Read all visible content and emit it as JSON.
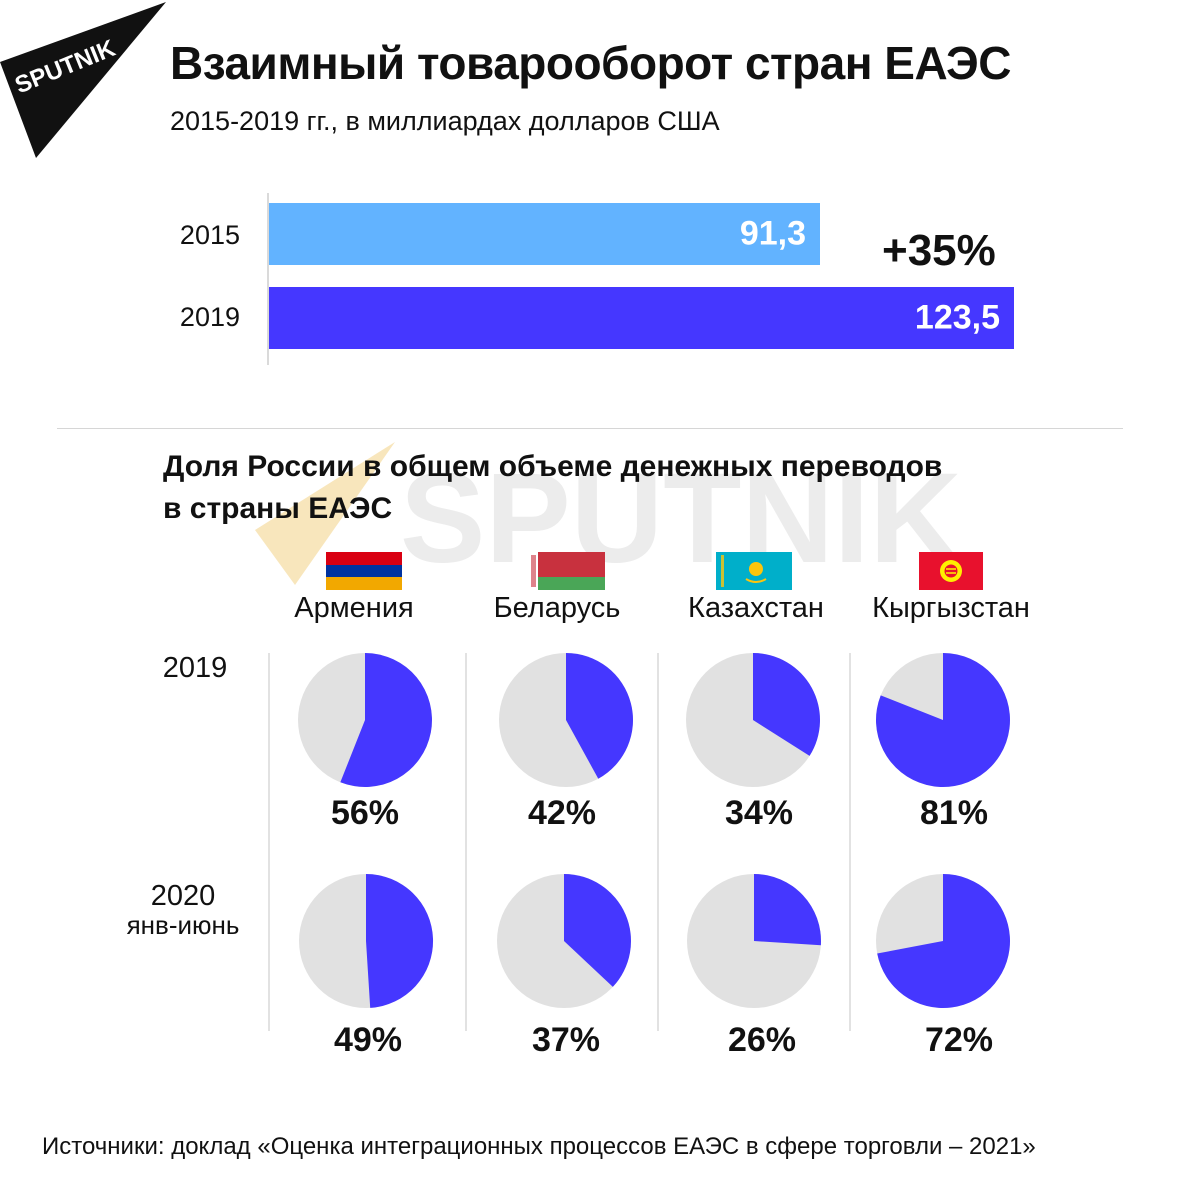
{
  "brand": {
    "logo_text": "SPUTNIK"
  },
  "header": {
    "title": "Взаимный товарооборот стран ЕАЭС",
    "subtitle": "2015-2019 гг., в миллиардах долларов США"
  },
  "trade": {
    "growth_label": "+35%",
    "years": [
      "2015",
      "2019"
    ],
    "values": [
      91.3,
      123.5
    ],
    "value_labels": [
      "91,3",
      "123,5"
    ],
    "colors": [
      "#62b3ff",
      "#4537ff"
    ],
    "xlim": [
      0,
      123.5
    ]
  },
  "remittances": {
    "title_line1": "Доля России в общем объеме денежных переводов",
    "title_line2": "в страны ЕАЭС",
    "row_labels": [
      {
        "year": "2019",
        "period": ""
      },
      {
        "year": "2020",
        "period": "янв-июнь"
      }
    ],
    "countries": [
      {
        "name": "Армения",
        "flag_icon": "armenia-flag-icon"
      },
      {
        "name": "Беларусь",
        "flag_icon": "belarus-flag-icon"
      },
      {
        "name": "Казахстан",
        "flag_icon": "kazakhstan-flag-icon"
      },
      {
        "name": "Кыргызстан",
        "flag_icon": "kyrgyzstan-flag-icon"
      }
    ],
    "colors": {
      "russia": "#4537ff",
      "other": "#e1e1e1"
    }
  },
  "chart_data": [
    {
      "type": "bar",
      "orientation": "horizontal",
      "title": "Взаимный товарооборот стран ЕАЭС",
      "subtitle": "2015-2019 гг., в миллиардах долларов США",
      "categories": [
        "2015",
        "2019"
      ],
      "values": [
        91.3,
        123.5
      ],
      "annotations": [
        "+35%"
      ]
    },
    {
      "type": "pie",
      "title": "Доля России в общем объеме денежных переводов в страны ЕАЭС",
      "categories": [
        "Армения",
        "Беларусь",
        "Казахстан",
        "Кыргызстан"
      ],
      "series": [
        {
          "name": "2019",
          "values": [
            56,
            42,
            34,
            81
          ],
          "labels": [
            "56%",
            "42%",
            "34%",
            "81%"
          ]
        },
        {
          "name": "2020 янв-июнь",
          "values": [
            49,
            37,
            26,
            72
          ],
          "labels": [
            "49%",
            "37%",
            "26%",
            "72%"
          ]
        }
      ]
    }
  ],
  "footer": {
    "source": "Источники: доклад «Оценка интеграционных процессов ЕАЭС в сфере торговли – 2021»"
  }
}
